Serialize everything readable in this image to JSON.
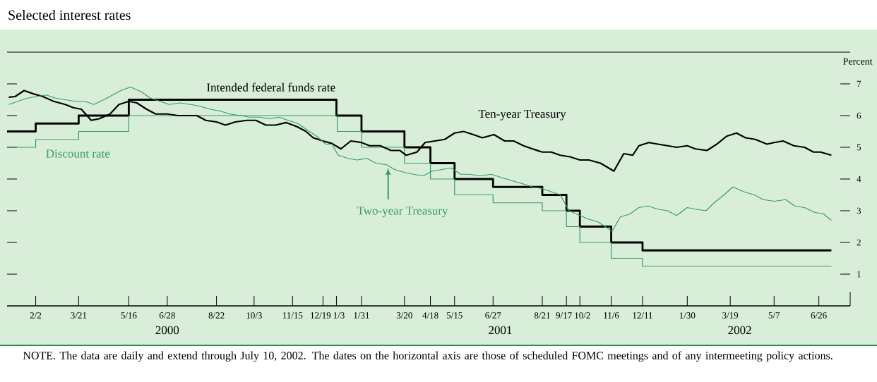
{
  "chart_data": {
    "type": "line",
    "title": "Selected interest rates",
    "ylabel": "Percent",
    "xlim": [
      "2000-01-01",
      "2002-07-31"
    ],
    "ylim": [
      0,
      8
    ],
    "yticks": [
      1,
      2,
      3,
      4,
      5,
      6,
      7
    ],
    "xticks": [
      {
        "value": "2000-02-02",
        "label": "2/2"
      },
      {
        "value": "2000-03-21",
        "label": "3/21"
      },
      {
        "value": "2000-05-16",
        "label": "5/16"
      },
      {
        "value": "2000-06-28",
        "label": "6/28"
      },
      {
        "value": "2000-08-22",
        "label": "8/22"
      },
      {
        "value": "2000-10-03",
        "label": "10/3"
      },
      {
        "value": "2000-11-15",
        "label": "11/15"
      },
      {
        "value": "2000-12-19",
        "label": "12/19"
      },
      {
        "value": "2001-01-03",
        "label": "1/3"
      },
      {
        "value": "2001-01-31",
        "label": "1/31"
      },
      {
        "value": "2001-03-20",
        "label": "3/20"
      },
      {
        "value": "2001-04-18",
        "label": "4/18"
      },
      {
        "value": "2001-05-15",
        "label": "5/15"
      },
      {
        "value": "2001-06-27",
        "label": "6/27"
      },
      {
        "value": "2001-08-21",
        "label": "8/21"
      },
      {
        "value": "2001-09-17",
        "label": "9/17"
      },
      {
        "value": "2001-10-02",
        "label": "10/2"
      },
      {
        "value": "2001-11-06",
        "label": "11/6"
      },
      {
        "value": "2001-12-11",
        "label": "12/11"
      },
      {
        "value": "2002-01-30",
        "label": "1/30"
      },
      {
        "value": "2002-03-19",
        "label": "3/19"
      },
      {
        "value": "2002-05-07",
        "label": "5/7"
      },
      {
        "value": "2002-06-26",
        "label": "6/26"
      }
    ],
    "annotations": [
      "2000",
      "2001",
      "2002",
      "NOTE. The data are daily and extend through July 10, 2002. The dates on the horizontal axis are those of scheduled FOMC meetings and of any intermeeting policy actions."
    ],
    "series": [
      {
        "name": "Intended federal funds rate",
        "type": "step",
        "color": "#000000",
        "x": [
          "2000-01-01",
          "2000-02-02",
          "2000-03-21",
          "2000-05-16",
          "2001-01-03",
          "2001-01-31",
          "2001-03-20",
          "2001-04-18",
          "2001-05-15",
          "2001-06-27",
          "2001-08-21",
          "2001-09-17",
          "2001-10-02",
          "2001-11-06",
          "2001-12-11",
          "2002-07-10"
        ],
        "values": [
          5.5,
          5.75,
          6.0,
          6.5,
          6.0,
          5.5,
          5.0,
          4.5,
          4.0,
          3.75,
          3.5,
          3.0,
          2.5,
          2.0,
          1.75,
          1.75
        ]
      },
      {
        "name": "Discount rate",
        "type": "step",
        "color": "#3a9a6a",
        "x": [
          "2000-01-01",
          "2000-02-02",
          "2000-03-21",
          "2000-05-16",
          "2001-01-04",
          "2001-01-31",
          "2001-03-20",
          "2001-04-18",
          "2001-05-15",
          "2001-06-27",
          "2001-08-21",
          "2001-09-17",
          "2001-10-02",
          "2001-11-06",
          "2001-12-11",
          "2002-07-10"
        ],
        "values": [
          5.0,
          5.25,
          5.5,
          6.0,
          5.5,
          5.0,
          4.5,
          4.0,
          3.5,
          3.25,
          3.0,
          2.5,
          2.0,
          1.5,
          1.25,
          1.25
        ]
      },
      {
        "name": "Ten-year Treasury",
        "type": "line",
        "color": "#000000",
        "x": [
          "2000-01-03",
          "2000-01-10",
          "2000-01-20",
          "2000-01-31",
          "2000-02-10",
          "2000-02-22",
          "2000-03-06",
          "2000-03-15",
          "2000-03-24",
          "2000-04-04",
          "2000-04-13",
          "2000-04-25",
          "2000-05-05",
          "2000-05-16",
          "2000-05-25",
          "2000-06-05",
          "2000-06-15",
          "2000-06-28",
          "2000-07-10",
          "2000-07-20",
          "2000-07-31",
          "2000-08-10",
          "2000-08-22",
          "2000-09-01",
          "2000-09-12",
          "2000-09-25",
          "2000-10-05",
          "2000-10-16",
          "2000-10-27",
          "2000-11-08",
          "2000-11-20",
          "2000-11-30",
          "2000-12-08",
          "2000-12-19",
          "2000-12-29",
          "2001-01-08",
          "2001-01-19",
          "2001-01-31",
          "2001-02-09",
          "2001-02-21",
          "2001-03-05",
          "2001-03-15",
          "2001-03-22",
          "2001-04-03",
          "2001-04-12",
          "2001-04-23",
          "2001-05-04",
          "2001-05-15",
          "2001-05-25",
          "2001-06-05",
          "2001-06-15",
          "2001-06-28",
          "2001-07-10",
          "2001-07-20",
          "2001-07-31",
          "2001-08-10",
          "2001-08-21",
          "2001-08-31",
          "2001-09-10",
          "2001-09-21",
          "2001-10-02",
          "2001-10-12",
          "2001-10-25",
          "2001-11-06",
          "2001-11-09",
          "2001-11-20",
          "2001-11-30",
          "2001-12-07",
          "2001-12-18",
          "2001-12-28",
          "2002-01-08",
          "2002-01-18",
          "2002-01-30",
          "2002-02-08",
          "2002-02-21",
          "2002-03-04",
          "2002-03-15",
          "2002-03-26",
          "2002-04-05",
          "2002-04-16",
          "2002-04-29",
          "2002-05-07",
          "2002-05-17",
          "2002-05-29",
          "2002-06-10",
          "2002-06-20",
          "2002-06-28",
          "2002-07-10"
        ],
        "values": [
          6.58,
          6.6,
          6.79,
          6.68,
          6.6,
          6.45,
          6.35,
          6.25,
          6.2,
          5.85,
          5.9,
          6.05,
          6.35,
          6.45,
          6.4,
          6.2,
          6.05,
          6.05,
          6.0,
          6.0,
          6.0,
          5.85,
          5.8,
          5.7,
          5.8,
          5.85,
          5.85,
          5.7,
          5.7,
          5.78,
          5.65,
          5.5,
          5.3,
          5.2,
          5.12,
          4.95,
          5.2,
          5.15,
          5.05,
          5.05,
          4.9,
          4.9,
          4.75,
          4.85,
          5.15,
          5.2,
          5.25,
          5.45,
          5.5,
          5.4,
          5.3,
          5.4,
          5.2,
          5.2,
          5.05,
          4.95,
          4.85,
          4.85,
          4.75,
          4.7,
          4.6,
          4.6,
          4.5,
          4.3,
          4.25,
          4.8,
          4.75,
          5.05,
          5.15,
          5.1,
          5.05,
          5.0,
          5.05,
          4.95,
          4.9,
          5.1,
          5.35,
          5.45,
          5.3,
          5.25,
          5.1,
          5.15,
          5.2,
          5.05,
          5.0,
          4.85,
          4.85,
          4.75
        ]
      },
      {
        "name": "Two-year Treasury",
        "type": "line",
        "color": "#3a9a6a",
        "x": [
          "2000-01-03",
          "2000-01-13",
          "2000-01-24",
          "2000-02-03",
          "2000-02-14",
          "2000-02-24",
          "2000-03-06",
          "2000-03-17",
          "2000-03-28",
          "2000-04-07",
          "2000-04-18",
          "2000-04-28",
          "2000-05-08",
          "2000-05-18",
          "2000-05-30",
          "2000-06-09",
          "2000-06-20",
          "2000-06-30",
          "2000-07-12",
          "2000-07-24",
          "2000-08-03",
          "2000-08-15",
          "2000-08-25",
          "2000-09-06",
          "2000-09-18",
          "2000-09-28",
          "2000-10-10",
          "2000-10-20",
          "2000-10-31",
          "2000-11-10",
          "2000-11-21",
          "2000-12-01",
          "2000-12-12",
          "2000-12-22",
          "2000-12-29",
          "2001-01-05",
          "2001-01-16",
          "2001-01-26",
          "2001-02-06",
          "2001-02-16",
          "2001-02-28",
          "2001-03-09",
          "2001-03-21",
          "2001-03-30",
          "2001-04-10",
          "2001-04-20",
          "2001-05-01",
          "2001-05-11",
          "2001-05-22",
          "2001-06-01",
          "2001-06-12",
          "2001-06-25",
          "2001-07-06",
          "2001-07-18",
          "2001-07-30",
          "2001-08-10",
          "2001-08-21",
          "2001-08-31",
          "2001-09-10",
          "2001-09-20",
          "2001-09-28",
          "2001-10-10",
          "2001-10-22",
          "2001-11-02",
          "2001-11-07",
          "2001-11-16",
          "2001-11-27",
          "2001-12-07",
          "2001-12-17",
          "2001-12-28",
          "2002-01-08",
          "2002-01-18",
          "2002-01-30",
          "2002-02-08",
          "2002-02-20",
          "2002-03-01",
          "2002-03-12",
          "2002-03-22",
          "2002-04-03",
          "2002-04-15",
          "2002-04-25",
          "2002-05-07",
          "2002-05-20",
          "2002-05-30",
          "2002-06-10",
          "2002-06-21",
          "2002-07-01",
          "2002-07-10"
        ],
        "values": [
          6.35,
          6.45,
          6.55,
          6.6,
          6.65,
          6.55,
          6.5,
          6.45,
          6.45,
          6.35,
          6.5,
          6.65,
          6.8,
          6.9,
          6.75,
          6.55,
          6.45,
          6.35,
          6.4,
          6.35,
          6.3,
          6.2,
          6.15,
          6.05,
          6.0,
          5.95,
          5.95,
          5.9,
          5.95,
          5.85,
          5.75,
          5.55,
          5.35,
          5.1,
          5.1,
          4.75,
          4.65,
          4.6,
          4.65,
          4.5,
          4.45,
          4.3,
          4.2,
          4.15,
          4.1,
          4.25,
          4.3,
          4.35,
          4.15,
          4.15,
          4.1,
          4.15,
          4.05,
          3.95,
          3.85,
          3.75,
          3.7,
          3.6,
          3.5,
          3.0,
          2.9,
          2.75,
          2.65,
          2.45,
          2.35,
          2.8,
          2.9,
          3.1,
          3.15,
          3.05,
          3.0,
          2.85,
          3.1,
          3.05,
          3.0,
          3.25,
          3.5,
          3.75,
          3.6,
          3.5,
          3.35,
          3.3,
          3.35,
          3.15,
          3.1,
          2.95,
          2.9,
          2.7
        ]
      }
    ]
  }
}
